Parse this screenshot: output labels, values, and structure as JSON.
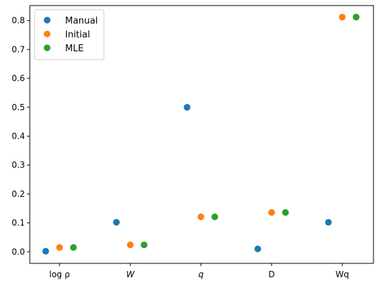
{
  "chart_data": {
    "type": "scatter",
    "categories": [
      "log ρ",
      "W",
      "q",
      "D",
      "Wq"
    ],
    "series": [
      {
        "name": "Manual",
        "color": "#1f77b4",
        "values": [
          0.002,
          0.102,
          0.5,
          0.01,
          0.102
        ]
      },
      {
        "name": "Initial",
        "color": "#ff7f0e",
        "values": [
          0.015,
          0.024,
          0.121,
          0.136,
          0.812
        ]
      },
      {
        "name": "MLE",
        "color": "#2ca02c",
        "values": [
          0.015,
          0.024,
          0.121,
          0.136,
          0.812
        ]
      }
    ],
    "yticks": [
      "0.0",
      "0.1",
      "0.2",
      "0.3",
      "0.4",
      "0.5",
      "0.6",
      "0.7",
      "0.8"
    ],
    "ylim": [
      -0.04,
      0.852
    ],
    "legend": "top-left",
    "grid": false
  }
}
